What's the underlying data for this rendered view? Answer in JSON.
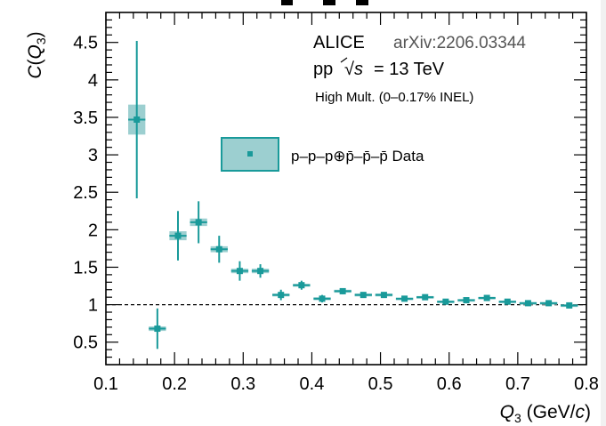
{
  "chart_data": {
    "type": "scatter",
    "xlabel": "Q3 (GeV/c)",
    "ylabel": "C(Q3)",
    "xlim": [
      0.1,
      0.8
    ],
    "ylim": [
      0.2,
      4.9
    ],
    "x_ticks": [
      "0.1",
      "0.2",
      "0.3",
      "0.4",
      "0.5",
      "0.6",
      "0.7",
      "0.8"
    ],
    "y_ticks": [
      "0.5",
      "1",
      "1.5",
      "2",
      "2.5",
      "3",
      "3.5",
      "4",
      "4.5"
    ],
    "reference_line": 1.0,
    "color": "#199a9a",
    "box_fill": "#9ccfd0",
    "series": [
      {
        "name": "p–p–p⊕p̄–p̄–p̄ Data",
        "points": [
          {
            "x": 0.145,
            "y": 3.47,
            "err": 1.05,
            "sys": 0.2
          },
          {
            "x": 0.175,
            "y": 0.68,
            "err": 0.27,
            "sys": 0.03
          },
          {
            "x": 0.205,
            "y": 1.92,
            "err": 0.33,
            "sys": 0.06
          },
          {
            "x": 0.235,
            "y": 2.1,
            "err": 0.28,
            "sys": 0.05
          },
          {
            "x": 0.265,
            "y": 1.74,
            "err": 0.18,
            "sys": 0.04
          },
          {
            "x": 0.295,
            "y": 1.45,
            "err": 0.13,
            "sys": 0.03
          },
          {
            "x": 0.325,
            "y": 1.45,
            "err": 0.09,
            "sys": 0.03
          },
          {
            "x": 0.355,
            "y": 1.13,
            "err": 0.07,
            "sys": 0.02
          },
          {
            "x": 0.385,
            "y": 1.26,
            "err": 0.06,
            "sys": 0.02
          },
          {
            "x": 0.415,
            "y": 1.08,
            "err": 0.05,
            "sys": 0.02
          },
          {
            "x": 0.445,
            "y": 1.18,
            "err": 0.04,
            "sys": 0.02
          },
          {
            "x": 0.475,
            "y": 1.13,
            "err": 0.03,
            "sys": 0.02
          },
          {
            "x": 0.505,
            "y": 1.13,
            "err": 0.03,
            "sys": 0.02
          },
          {
            "x": 0.535,
            "y": 1.08,
            "err": 0.03,
            "sys": 0.015
          },
          {
            "x": 0.565,
            "y": 1.1,
            "err": 0.03,
            "sys": 0.015
          },
          {
            "x": 0.595,
            "y": 1.04,
            "err": 0.025,
            "sys": 0.015
          },
          {
            "x": 0.625,
            "y": 1.06,
            "err": 0.025,
            "sys": 0.015
          },
          {
            "x": 0.655,
            "y": 1.09,
            "err": 0.025,
            "sys": 0.015
          },
          {
            "x": 0.685,
            "y": 1.04,
            "err": 0.02,
            "sys": 0.015
          },
          {
            "x": 0.715,
            "y": 1.02,
            "err": 0.02,
            "sys": 0.015
          },
          {
            "x": 0.745,
            "y": 1.02,
            "err": 0.02,
            "sys": 0.015
          },
          {
            "x": 0.775,
            "y": 0.99,
            "err": 0.02,
            "sys": 0.015
          }
        ]
      }
    ],
    "legend": {
      "label": "p–p–p⊕p̄–p̄–p̄ Data",
      "placement": "middle"
    },
    "annotations": {
      "experiment": "ALICE",
      "arxiv": "arXiv:2206.03344",
      "system_prefix": "pp",
      "system_sqrt": "√s",
      "system_energy": "= 13 TeV",
      "multiplicity": "High Mult. (0–0.17% INEL)"
    }
  }
}
